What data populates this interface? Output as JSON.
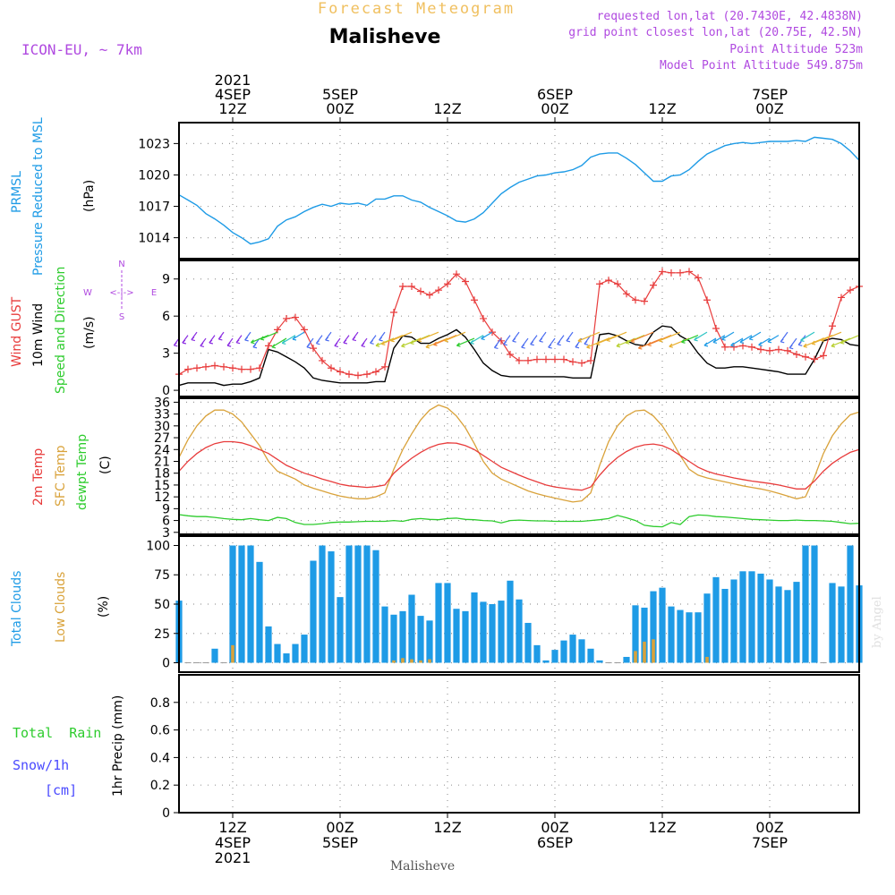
{
  "header": {
    "product_title": "Forecast Meteogram",
    "location": "Malisheve",
    "model": "ICON-EU, ~ 7km",
    "requested": "requested lon,lat (20.7430E, 42.4838N)",
    "grid_point": "grid point closest lon,lat (20.75E, 42.5N)",
    "point_altitude": "Point Altitude 523m",
    "model_altitude": "Model Point Altitude 549.875m"
  },
  "time_axis": {
    "top_labels": [
      {
        "hours": 12,
        "lines": [
          "2021",
          "4SEP",
          "12Z"
        ]
      },
      {
        "hours": 24,
        "lines": [
          "5SEP",
          "00Z"
        ]
      },
      {
        "hours": 36,
        "lines": [
          "12Z"
        ]
      },
      {
        "hours": 48,
        "lines": [
          "6SEP",
          "00Z"
        ]
      },
      {
        "hours": 60,
        "lines": [
          "12Z"
        ]
      },
      {
        "hours": 72,
        "lines": [
          "7SEP",
          "00Z"
        ]
      }
    ],
    "bottom_labels": [
      {
        "hours": 12,
        "lines": [
          "12Z",
          "4SEP",
          "2021"
        ]
      },
      {
        "hours": 24,
        "lines": [
          "00Z",
          "5SEP"
        ]
      },
      {
        "hours": 36,
        "lines": [
          "12Z"
        ]
      },
      {
        "hours": 48,
        "lines": [
          "00Z",
          "6SEP"
        ]
      },
      {
        "hours": 60,
        "lines": [
          "12Z"
        ]
      },
      {
        "hours": 72,
        "lines": [
          "00Z",
          "7SEP"
        ]
      }
    ],
    "start_hour": 6,
    "end_hour": 82,
    "footer": "Malisheve",
    "watermark": "by Angel"
  },
  "panels": {
    "pressure": {
      "label1": "PRMSL",
      "label2": "Pressure Reduced to MSL",
      "unit": "(hPa)"
    },
    "wind": {
      "label_gust": "Wind GUST",
      "label_wind": "10m Wind",
      "label_dir": "Speed and Direction",
      "unit": "(m/s)",
      "compass": {
        "n": "N",
        "s": "S",
        "e": "E",
        "w": "W"
      }
    },
    "temp": {
      "label_2m": "2m Temp",
      "label_sfc": "SFC Temp",
      "label_dew": "dewpt Temp",
      "unit": "(C)"
    },
    "clouds": {
      "label_total": "Total Clouds",
      "label_low": "Low Clouds",
      "unit": "(%)"
    },
    "precip": {
      "label_rain": "Total  Rain",
      "label_snow": "Snow/1h",
      "label_cm": "[cm]",
      "axis_label": "1hr Precip (mm)"
    }
  },
  "colors": {
    "pressure": "#1e9be6",
    "gust": "#e83c3c",
    "wind": "#000000",
    "temp2m": "#e83c3c",
    "sfc": "#d9a23a",
    "dew": "#2ecc2e",
    "total_clouds": "#1e9be6",
    "low_clouds": "#d9a23a",
    "rain": "#2ecc2e",
    "snow": "#4a4aff",
    "header_purple": "#b04ae0",
    "title_orange": "#f0c060"
  },
  "chart_data": [
    {
      "type": "line",
      "name": "pressure",
      "ylabel": "(hPa)",
      "ylim": [
        1012,
        1025
      ],
      "yticks": [
        1014,
        1017,
        1020,
        1023
      ],
      "x": [
        6,
        7,
        8,
        9,
        10,
        11,
        12,
        13,
        14,
        15,
        16,
        17,
        18,
        19,
        20,
        21,
        22,
        23,
        24,
        25,
        26,
        27,
        28,
        29,
        30,
        31,
        32,
        33,
        34,
        35,
        36,
        37,
        38,
        39,
        40,
        41,
        42,
        43,
        44,
        45,
        46,
        47,
        48,
        49,
        50,
        51,
        52,
        53,
        54,
        55,
        56,
        57,
        58,
        59,
        60,
        61,
        62,
        63,
        64,
        65,
        66,
        67,
        68,
        69,
        70,
        71,
        72,
        73,
        74,
        75,
        76,
        77,
        78,
        79,
        80,
        81,
        82
      ],
      "values": [
        1018.1,
        1017.6,
        1017.1,
        1016.3,
        1015.8,
        1015.2,
        1014.5,
        1014.0,
        1013.4,
        1013.6,
        1013.9,
        1015.1,
        1015.7,
        1016.0,
        1016.5,
        1016.9,
        1017.2,
        1017.0,
        1017.3,
        1017.2,
        1017.3,
        1017.1,
        1017.7,
        1017.7,
        1018.0,
        1018.0,
        1017.6,
        1017.4,
        1016.9,
        1016.5,
        1016.1,
        1015.6,
        1015.5,
        1015.8,
        1016.4,
        1017.3,
        1018.2,
        1018.8,
        1019.3,
        1019.6,
        1019.9,
        1020.0,
        1020.2,
        1020.3,
        1020.5,
        1020.9,
        1021.7,
        1022.0,
        1022.1,
        1022.1,
        1021.6,
        1021.0,
        1020.2,
        1019.4,
        1019.4,
        1019.9,
        1020.0,
        1020.5,
        1021.3,
        1022.0,
        1022.4,
        1022.8,
        1023.0,
        1023.1,
        1023.0,
        1023.1,
        1023.2,
        1023.2,
        1023.2,
        1023.3,
        1023.2,
        1023.6,
        1023.5,
        1023.4,
        1023.0,
        1022.3,
        1021.4
      ]
    },
    {
      "type": "line",
      "name": "wind",
      "ylabel": "(m/s)",
      "ylim": [
        -0.5,
        10.5
      ],
      "yticks": [
        0,
        3,
        6,
        9
      ],
      "x": [
        6,
        7,
        8,
        9,
        10,
        11,
        12,
        13,
        14,
        15,
        16,
        17,
        18,
        19,
        20,
        21,
        22,
        23,
        24,
        25,
        26,
        27,
        28,
        29,
        30,
        31,
        32,
        33,
        34,
        35,
        36,
        37,
        38,
        39,
        40,
        41,
        42,
        43,
        44,
        45,
        46,
        47,
        48,
        49,
        50,
        51,
        52,
        53,
        54,
        55,
        56,
        57,
        58,
        59,
        60,
        61,
        62,
        63,
        64,
        65,
        66,
        67,
        68,
        69,
        70,
        71,
        72,
        73,
        74,
        75,
        76,
        77,
        78,
        79,
        80,
        81,
        82
      ],
      "series": [
        {
          "name": "Wind GUST",
          "values": [
            1.3,
            1.7,
            1.8,
            1.9,
            2.0,
            1.9,
            1.8,
            1.7,
            1.7,
            1.8,
            3.6,
            4.9,
            5.8,
            5.9,
            4.9,
            3.4,
            2.4,
            1.8,
            1.5,
            1.3,
            1.2,
            1.3,
            1.5,
            1.9,
            6.3,
            8.4,
            8.4,
            8.0,
            7.7,
            8.1,
            8.6,
            9.4,
            8.8,
            7.3,
            5.8,
            4.7,
            4.0,
            2.9,
            2.4,
            2.4,
            2.5,
            2.5,
            2.5,
            2.5,
            2.3,
            2.2,
            2.4,
            8.6,
            8.9,
            8.6,
            7.8,
            7.3,
            7.2,
            8.5,
            9.6,
            9.5,
            9.5,
            9.6,
            9.1,
            7.3,
            5.0,
            3.5,
            3.5,
            3.6,
            3.5,
            3.3,
            3.2,
            3.3,
            3.2,
            2.9,
            2.7,
            2.5,
            2.8,
            5.2,
            7.5,
            8.1,
            8.4
          ]
        },
        {
          "name": "10m Wind",
          "values": [
            0.4,
            0.6,
            0.6,
            0.6,
            0.6,
            0.4,
            0.5,
            0.5,
            0.7,
            1.0,
            3.3,
            3.1,
            2.7,
            2.3,
            1.8,
            1.0,
            0.8,
            0.7,
            0.6,
            0.6,
            0.6,
            0.6,
            0.7,
            0.7,
            3.4,
            4.4,
            4.3,
            3.8,
            3.8,
            4.2,
            4.5,
            4.9,
            4.3,
            3.3,
            2.2,
            1.6,
            1.2,
            1.1,
            1.1,
            1.1,
            1.1,
            1.1,
            1.1,
            1.1,
            1.0,
            1.0,
            1.0,
            4.5,
            4.6,
            4.4,
            4.0,
            3.7,
            3.6,
            4.7,
            5.2,
            5.1,
            4.4,
            4.0,
            3.0,
            2.2,
            1.8,
            1.8,
            1.9,
            1.9,
            1.8,
            1.7,
            1.6,
            1.5,
            1.3,
            1.3,
            1.3,
            2.5,
            4.0,
            4.2,
            4.1,
            3.7,
            3.6
          ]
        }
      ]
    },
    {
      "type": "line",
      "name": "temperature",
      "ylabel": "(C)",
      "ylim": [
        2.5,
        37
      ],
      "yticks": [
        3,
        6,
        9,
        12,
        15,
        18,
        21,
        24,
        27,
        30,
        33,
        36
      ],
      "x": [
        6,
        7,
        8,
        9,
        10,
        11,
        12,
        13,
        14,
        15,
        16,
        17,
        18,
        19,
        20,
        21,
        22,
        23,
        24,
        25,
        26,
        27,
        28,
        29,
        30,
        31,
        32,
        33,
        34,
        35,
        36,
        37,
        38,
        39,
        40,
        41,
        42,
        43,
        44,
        45,
        46,
        47,
        48,
        49,
        50,
        51,
        52,
        53,
        54,
        55,
        56,
        57,
        58,
        59,
        60,
        61,
        62,
        63,
        64,
        65,
        66,
        67,
        68,
        69,
        70,
        71,
        72,
        73,
        74,
        75,
        76,
        77,
        78,
        79,
        80,
        81,
        82
      ],
      "series": [
        {
          "name": "2m Temp",
          "values": [
            18.5,
            21.0,
            23.0,
            24.5,
            25.5,
            26.0,
            26.0,
            25.7,
            25.0,
            24.0,
            23.0,
            21.5,
            20.0,
            19.0,
            18.0,
            17.3,
            16.5,
            15.9,
            15.2,
            14.8,
            14.6,
            14.4,
            14.6,
            15.0,
            18.0,
            20.0,
            21.8,
            23.3,
            24.5,
            25.3,
            25.7,
            25.6,
            25.0,
            24.0,
            22.5,
            21.0,
            19.5,
            18.5,
            17.5,
            16.6,
            15.8,
            15.0,
            14.5,
            14.2,
            13.9,
            13.7,
            14.5,
            17.5,
            20.0,
            22.0,
            23.5,
            24.6,
            25.2,
            25.4,
            25.0,
            24.0,
            22.5,
            21.0,
            19.5,
            18.5,
            17.8,
            17.3,
            16.8,
            16.4,
            16.0,
            15.7,
            15.4,
            15.0,
            14.5,
            14.0,
            14.0,
            16.0,
            18.5,
            20.5,
            22.0,
            23.3,
            24.0
          ]
        },
        {
          "name": "SFC Temp",
          "values": [
            22.0,
            26.5,
            30.0,
            32.5,
            34.0,
            34.0,
            33.0,
            31.0,
            28.0,
            25.0,
            21.0,
            18.5,
            17.5,
            16.5,
            15.0,
            14.2,
            13.5,
            12.8,
            12.2,
            11.8,
            11.5,
            11.5,
            12.0,
            13.0,
            19.0,
            24.0,
            28.0,
            31.5,
            34.0,
            35.3,
            34.5,
            32.5,
            29.5,
            25.5,
            21.0,
            18.0,
            16.5,
            15.5,
            14.5,
            13.5,
            12.8,
            12.2,
            11.7,
            11.2,
            10.7,
            11.0,
            13.0,
            20.0,
            26.0,
            30.0,
            32.5,
            33.8,
            34.0,
            32.5,
            30.0,
            26.5,
            22.5,
            19.0,
            17.5,
            16.8,
            16.3,
            15.8,
            15.3,
            14.8,
            14.4,
            14.0,
            13.5,
            12.9,
            12.2,
            11.5,
            12.0,
            17.0,
            23.0,
            27.5,
            30.5,
            32.8,
            33.5
          ]
        },
        {
          "name": "dewpt Temp",
          "values": [
            7.5,
            7.2,
            7.0,
            7.0,
            6.8,
            6.5,
            6.3,
            6.2,
            6.5,
            6.2,
            6.0,
            6.8,
            6.5,
            5.5,
            5.0,
            5.0,
            5.2,
            5.5,
            5.6,
            5.6,
            5.7,
            5.8,
            5.8,
            5.8,
            6.0,
            5.8,
            6.3,
            6.5,
            6.3,
            6.2,
            6.5,
            6.6,
            6.3,
            6.2,
            6.0,
            5.9,
            5.4,
            6.0,
            6.1,
            6.0,
            5.9,
            5.9,
            5.8,
            5.8,
            5.8,
            5.8,
            6.0,
            6.2,
            6.5,
            7.3,
            6.7,
            6.0,
            4.8,
            4.5,
            4.4,
            5.5,
            5.0,
            7.0,
            7.4,
            7.3,
            7.0,
            6.9,
            6.7,
            6.5,
            6.3,
            6.2,
            6.1,
            6.0,
            6.0,
            6.1,
            6.0,
            6.0,
            5.9,
            5.8,
            5.5,
            5.2,
            5.3
          ]
        }
      ]
    },
    {
      "type": "bar",
      "name": "clouds",
      "ylabel": "(%)",
      "ylim": [
        -8,
        108
      ],
      "yticks": [
        0,
        25,
        50,
        75,
        100
      ],
      "x": [
        6,
        7,
        8,
        9,
        10,
        11,
        12,
        13,
        14,
        15,
        16,
        17,
        18,
        19,
        20,
        21,
        22,
        23,
        24,
        25,
        26,
        27,
        28,
        29,
        30,
        31,
        32,
        33,
        34,
        35,
        36,
        37,
        38,
        39,
        40,
        41,
        42,
        43,
        44,
        45,
        46,
        47,
        48,
        49,
        50,
        51,
        52,
        53,
        54,
        55,
        56,
        57,
        58,
        59,
        60,
        61,
        62,
        63,
        64,
        65,
        66,
        67,
        68,
        69,
        70,
        71,
        72,
        73,
        74,
        75,
        76,
        77,
        78,
        79,
        80,
        81,
        82
      ],
      "series": [
        {
          "name": "Total Clouds",
          "values": [
            53,
            0,
            0,
            0,
            12,
            0,
            100,
            100,
            100,
            86,
            31,
            16,
            8,
            16,
            24,
            87,
            100,
            95,
            56,
            100,
            100,
            100,
            96,
            48,
            41,
            44,
            58,
            40,
            36,
            68,
            68,
            46,
            44,
            60,
            52,
            50,
            53,
            70,
            54,
            34,
            15,
            2,
            11,
            19,
            24,
            20,
            12,
            2,
            0,
            0,
            5,
            49,
            47,
            61,
            64,
            48,
            45,
            43,
            43,
            59,
            73,
            63,
            71,
            78,
            78,
            76,
            71,
            65,
            62,
            69,
            100,
            100,
            0,
            68,
            65,
            100,
            66
          ]
        },
        {
          "name": "Low Clouds",
          "values": [
            0,
            0,
            0,
            0,
            0,
            0,
            15,
            0,
            0,
            0,
            0,
            0,
            0,
            0,
            0,
            0,
            0,
            0,
            0,
            0,
            0,
            0,
            0,
            0,
            2,
            4,
            3,
            2,
            3,
            0,
            0,
            0,
            0,
            0,
            0,
            0,
            0,
            0,
            0,
            0,
            0,
            0,
            0,
            0,
            0,
            0,
            0,
            0,
            0,
            0,
            0,
            10,
            18,
            20,
            0,
            0,
            0,
            0,
            0,
            5,
            0,
            0,
            0,
            0,
            0,
            0,
            0,
            0,
            0,
            0,
            0,
            0,
            0,
            0,
            0,
            0,
            0
          ]
        }
      ]
    },
    {
      "type": "bar",
      "name": "precipitation",
      "ylabel": "1hr Precip (mm)",
      "ylim": [
        0,
        1.0
      ],
      "yticks": [
        0,
        0.2,
        0.4,
        0.6,
        0.8
      ],
      "series": [
        {
          "name": "Total Rain",
          "values": []
        },
        {
          "name": "Snow/1h",
          "values": []
        }
      ]
    }
  ]
}
